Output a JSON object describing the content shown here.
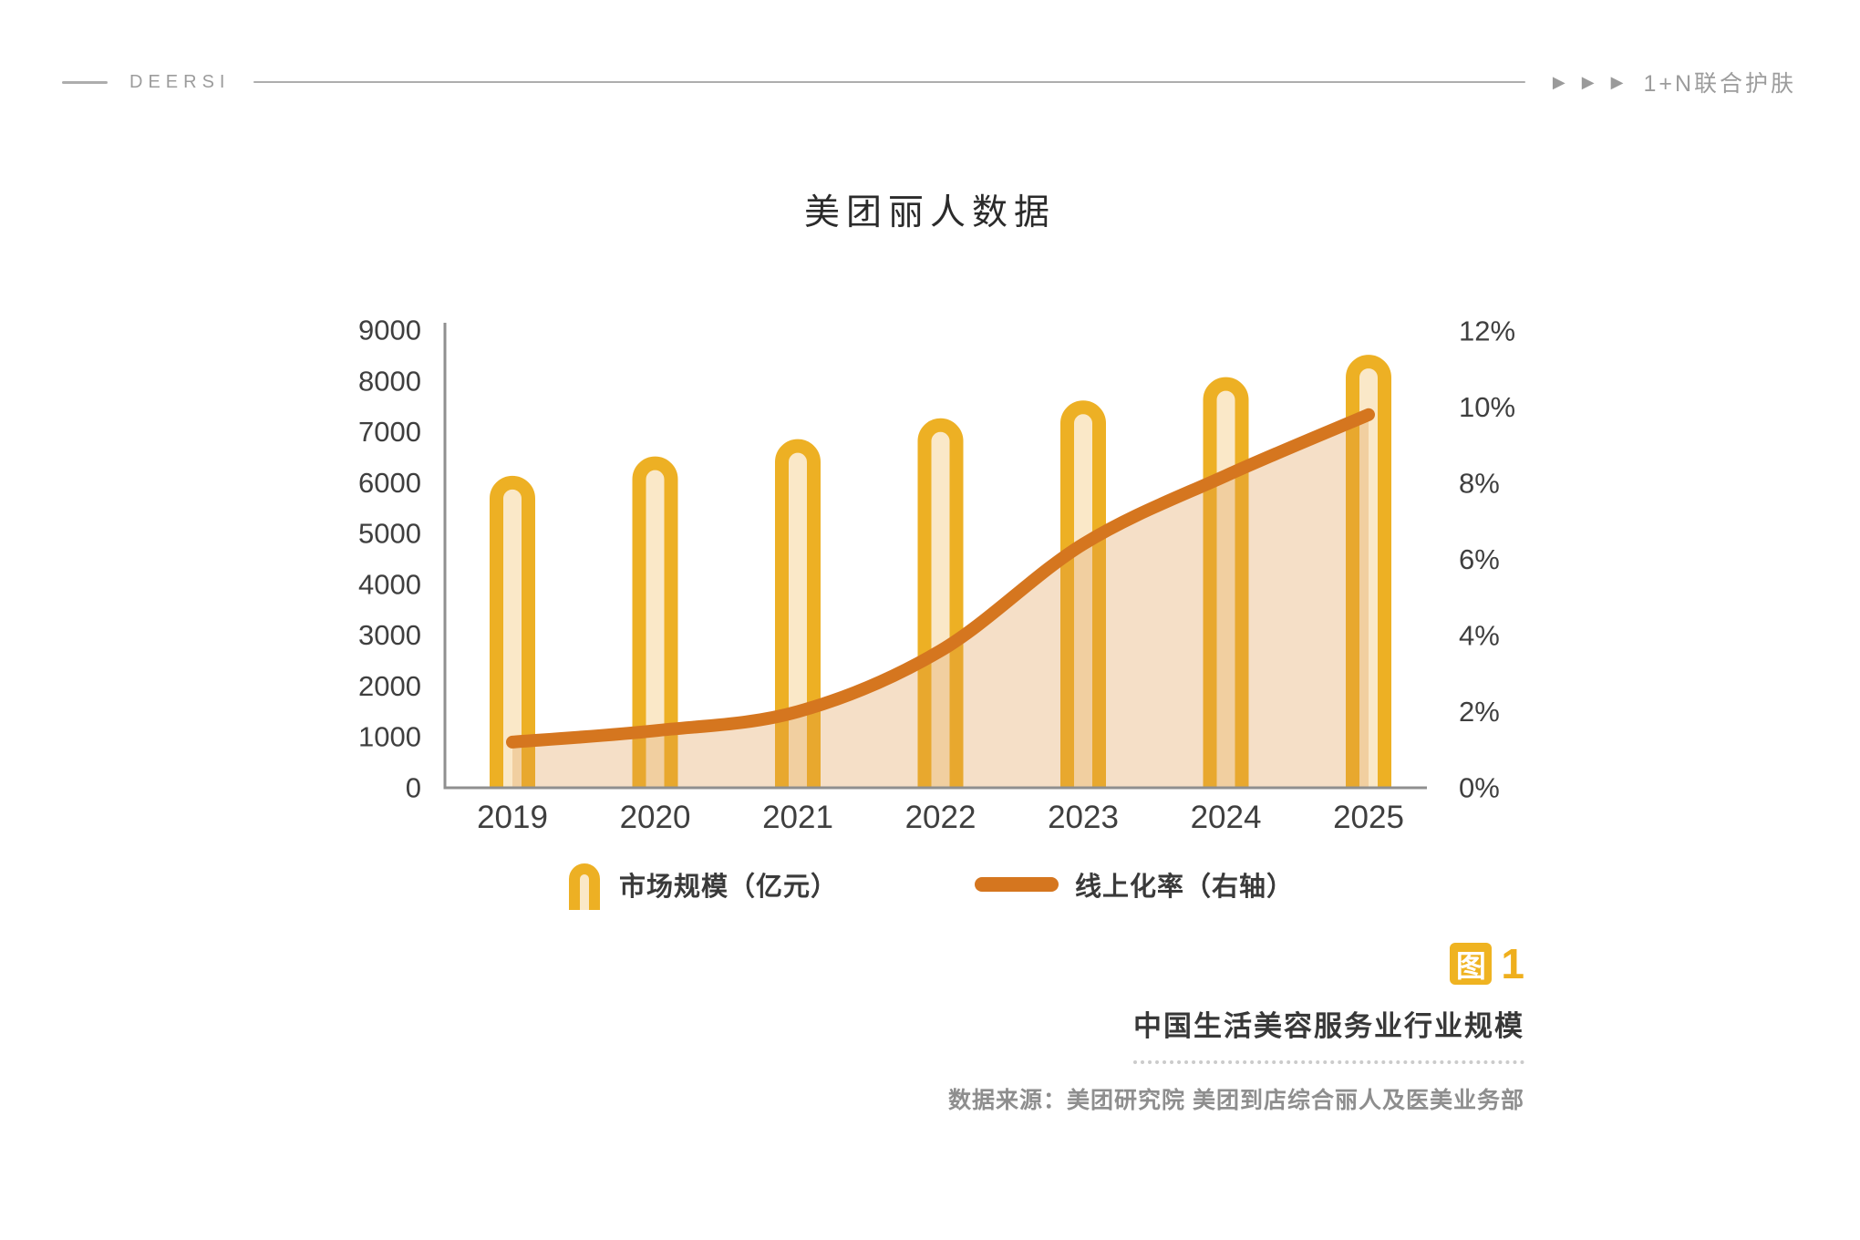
{
  "header": {
    "brand": "DEERSI",
    "arrow_icon": "▶",
    "section_label": "1+N联合护肤"
  },
  "chart_data": {
    "type": "combo-bar-line",
    "title": "美团丽人数据",
    "categories": [
      "2019",
      "2020",
      "2021",
      "2022",
      "2023",
      "2024",
      "2025"
    ],
    "series": [
      {
        "name": "市场规模（亿元）",
        "type": "bar",
        "axis": "left",
        "values": [
          6000,
          6380,
          6720,
          7130,
          7480,
          7940,
          8380
        ]
      },
      {
        "name": "线上化率（右轴）",
        "type": "line",
        "axis": "right",
        "values": [
          1.2,
          1.5,
          2.0,
          3.6,
          6.4,
          8.2,
          9.8
        ]
      }
    ],
    "left_axis": {
      "min": 0,
      "max": 9000,
      "step": 1000
    },
    "right_axis": {
      "min": 0,
      "max": 12,
      "step": 2,
      "suffix": "%"
    },
    "grid": false,
    "legend_position": "bottom",
    "colors": {
      "bar_stroke": "#EDB024",
      "bar_fill": "#FAE8C8",
      "line": "#D5761F",
      "area_fill": "rgba(222,150,70,0.30)",
      "axis_line": "#8F8F8F",
      "tick_text": "#3F3F3F"
    }
  },
  "footer": {
    "figure_badge": "图",
    "figure_number": "1",
    "caption": "中国生活美容服务业行业规模",
    "source": "数据来源：美团研究院  美团到店综合丽人及医美业务部"
  }
}
